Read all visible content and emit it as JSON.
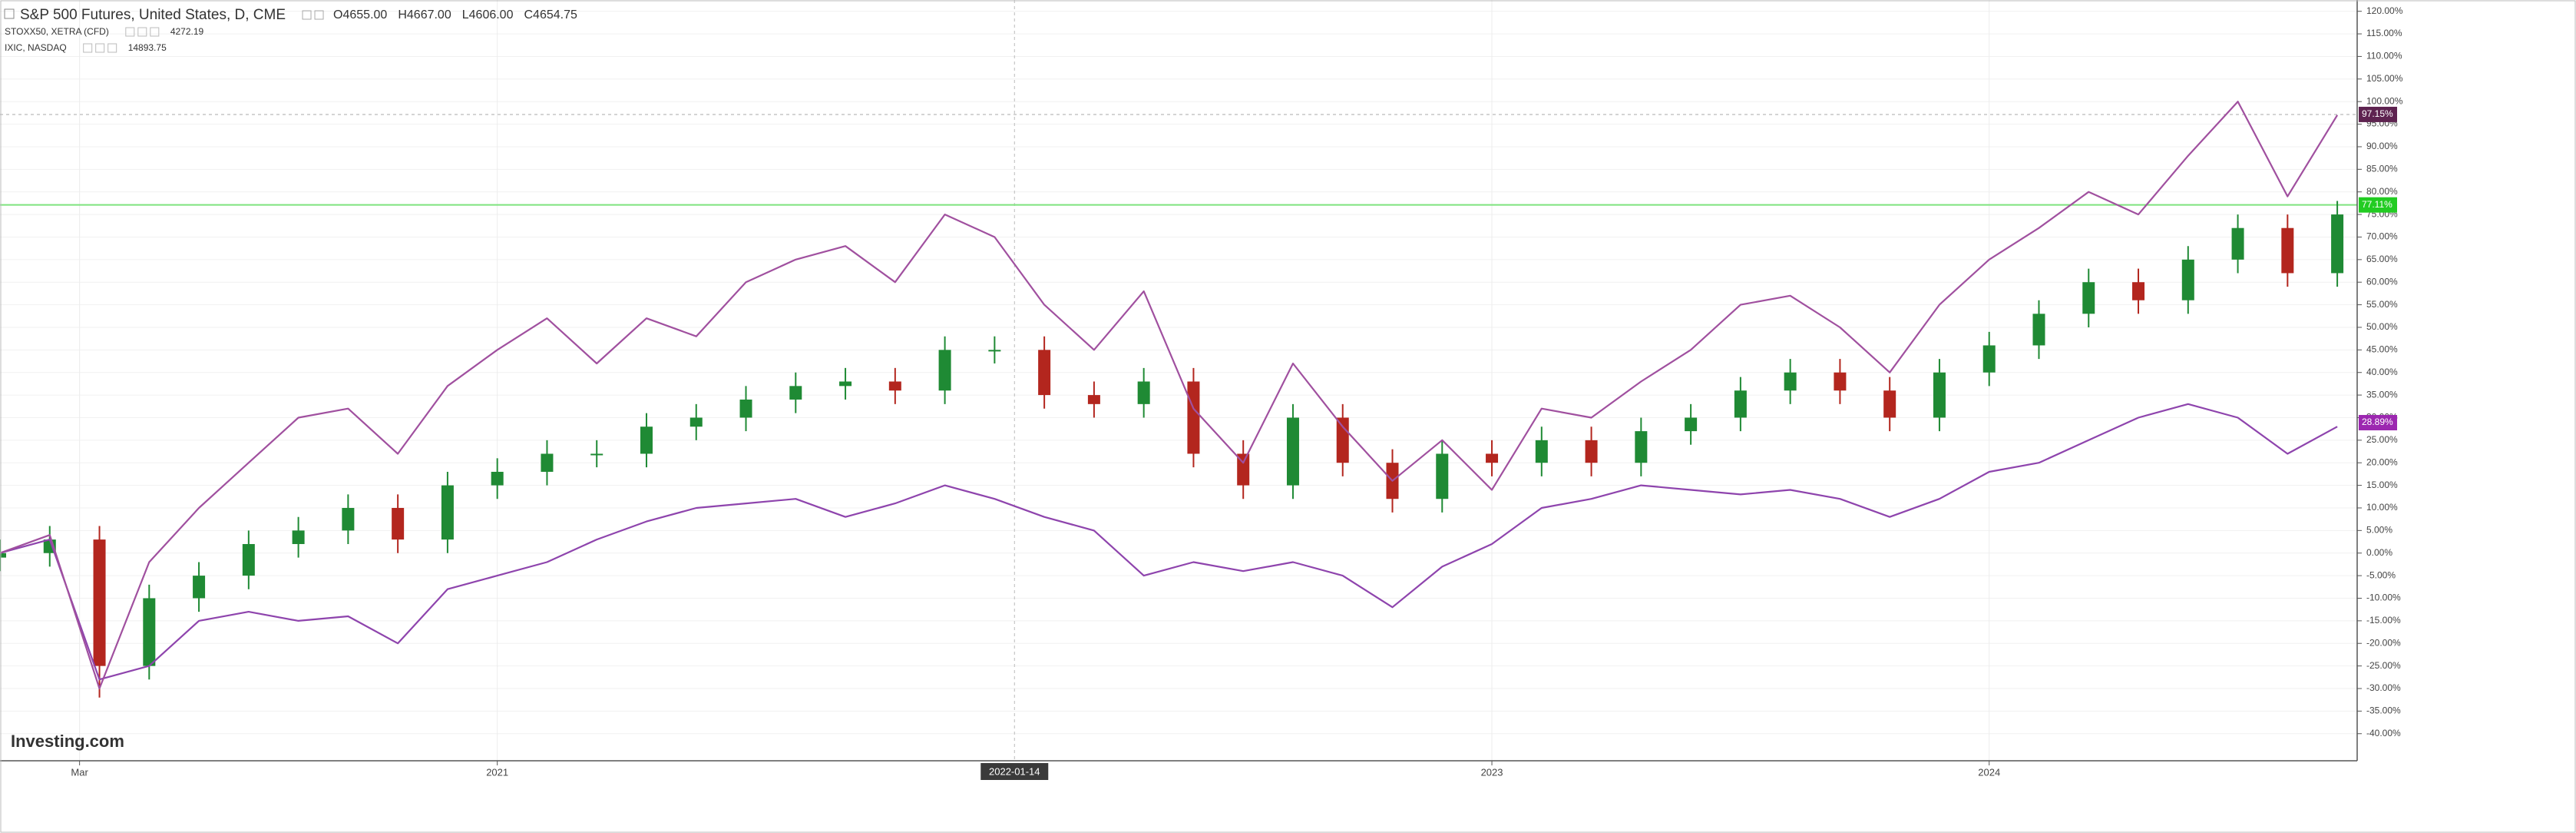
{
  "chart_data": {
    "type": "candlestick",
    "title": "S&P 500 Futures, United States, D, CME",
    "ohlc": [
      {
        "label": "O",
        "value": "4655.00"
      },
      {
        "label": "H",
        "value": "4667.00"
      },
      {
        "label": "L",
        "value": "4606.00"
      },
      {
        "label": "C",
        "value": "4654.75"
      }
    ],
    "watermark": "Investing.com",
    "crosshair": {
      "x": 2022.04,
      "label": "2022-01-14"
    },
    "xlim": [
      2020,
      2024.74
    ],
    "xticks": [
      {
        "value": 2020.16,
        "label": "Mar"
      },
      {
        "value": 2021,
        "label": "2021"
      },
      {
        "value": 2023,
        "label": "2023"
      },
      {
        "value": 2024,
        "label": "2024"
      }
    ],
    "ylim": [
      -46,
      122.5
    ],
    "yticks": [
      {
        "value": 120,
        "label": "120.00%"
      },
      {
        "value": 115,
        "label": "115.00%"
      },
      {
        "value": 110,
        "label": "110.00%"
      },
      {
        "value": 105,
        "label": "105.00%"
      },
      {
        "value": 100,
        "label": "100.00%"
      },
      {
        "value": 95,
        "label": "95.00%"
      },
      {
        "value": 90,
        "label": "90.00%"
      },
      {
        "value": 85,
        "label": "85.00%"
      },
      {
        "value": 80,
        "label": "80.00%"
      },
      {
        "value": 75,
        "label": "75.00%"
      },
      {
        "value": 70,
        "label": "70.00%"
      },
      {
        "value": 65,
        "label": "65.00%"
      },
      {
        "value": 60,
        "label": "60.00%"
      },
      {
        "value": 55,
        "label": "55.00%"
      },
      {
        "value": 50,
        "label": "50.00%"
      },
      {
        "value": 45,
        "label": "45.00%"
      },
      {
        "value": 40,
        "label": "40.00%"
      },
      {
        "value": 35,
        "label": "35.00%"
      },
      {
        "value": 30,
        "label": "30.00%"
      },
      {
        "value": 25,
        "label": "25.00%"
      },
      {
        "value": 20,
        "label": "20.00%"
      },
      {
        "value": 15,
        "label": "15.00%"
      },
      {
        "value": 10,
        "label": "10.00%"
      },
      {
        "value": 5,
        "label": "5.00%"
      },
      {
        "value": 0,
        "label": "0.00%"
      },
      {
        "value": -5,
        "label": "-5.00%"
      },
      {
        "value": -10,
        "label": "-10.00%"
      },
      {
        "value": -15,
        "label": "-15.00%"
      },
      {
        "value": -20,
        "label": "-20.00%"
      },
      {
        "value": -25,
        "label": "-25.00%"
      },
      {
        "value": -30,
        "label": "-30.00%"
      },
      {
        "value": -35,
        "label": "-35.00%"
      },
      {
        "value": -40,
        "label": "-40.00%"
      }
    ],
    "grid": true,
    "x": [
      2020.0,
      2020.1,
      2020.2,
      2020.3,
      2020.4,
      2020.5,
      2020.6,
      2020.7,
      2020.8,
      2020.9,
      2021.0,
      2021.1,
      2021.2,
      2021.3,
      2021.4,
      2021.5,
      2021.6,
      2021.7,
      2021.8,
      2021.9,
      2022.0,
      2022.1,
      2022.2,
      2022.3,
      2022.4,
      2022.5,
      2022.6,
      2022.7,
      2022.8,
      2022.9,
      2023.0,
      2023.1,
      2023.2,
      2023.3,
      2023.4,
      2023.5,
      2023.6,
      2023.7,
      2023.8,
      2023.9,
      2024.0,
      2024.1,
      2024.2,
      2024.3,
      2024.4,
      2024.5,
      2024.6,
      2024.7
    ],
    "series": [
      {
        "name": "S&P 500 Futures, United States, D, CME",
        "type": "candlestick",
        "up_color": "#1f8a34",
        "down_color": "#b3261e",
        "line_color": "#7ee37e",
        "tag_color": "#22cc22",
        "open": [
          -1,
          0,
          3,
          -25,
          -10,
          -5,
          2,
          5,
          10,
          3,
          15,
          18,
          22,
          22,
          28,
          30,
          34,
          37,
          38,
          36,
          45,
          45,
          35,
          33,
          38,
          22,
          15,
          30,
          20,
          12,
          22,
          20,
          25,
          20,
          27,
          30,
          36,
          40,
          36,
          30,
          40,
          46,
          53,
          60,
          56,
          65,
          72,
          62
        ],
        "high": [
          3,
          6,
          6,
          -7,
          -2,
          5,
          8,
          13,
          13,
          18,
          21,
          25,
          25,
          31,
          33,
          37,
          40,
          41,
          41,
          48,
          48,
          48,
          38,
          41,
          41,
          25,
          33,
          33,
          23,
          25,
          25,
          28,
          28,
          30,
          33,
          39,
          43,
          43,
          39,
          43,
          49,
          56,
          63,
          63,
          68,
          75,
          75,
          78
        ],
        "low": [
          -4,
          -3,
          -32,
          -28,
          -13,
          -8,
          -1,
          2,
          0,
          0,
          12,
          15,
          19,
          19,
          25,
          27,
          31,
          34,
          33,
          33,
          42,
          32,
          30,
          30,
          19,
          12,
          12,
          17,
          9,
          9,
          17,
          17,
          17,
          17,
          24,
          27,
          33,
          33,
          27,
          27,
          37,
          43,
          50,
          53,
          53,
          62,
          59,
          59
        ],
        "close": [
          0,
          3,
          -25,
          -10,
          -5,
          2,
          5,
          10,
          3,
          15,
          18,
          22,
          22,
          28,
          30,
          34,
          37,
          38,
          36,
          45,
          45,
          35,
          33,
          38,
          22,
          15,
          30,
          20,
          12,
          22,
          20,
          25,
          20,
          27,
          30,
          36,
          40,
          36,
          30,
          40,
          46,
          53,
          60,
          56,
          65,
          72,
          62,
          75
        ],
        "last_value": 77.11,
        "last_label": "77.11%"
      },
      {
        "name": "STOXX50, XETRA (CFD)",
        "type": "line",
        "color": "#8e44ad",
        "tag_color": "#9c27b0",
        "legend_value": "4272.19",
        "values": [
          0,
          3,
          -28,
          -25,
          -15,
          -13,
          -15,
          -14,
          -20,
          -8,
          -5,
          -2,
          3,
          7,
          10,
          11,
          12,
          8,
          11,
          15,
          12,
          8,
          5,
          -5,
          -2,
          -4,
          -2,
          -5,
          -12,
          -3,
          2,
          10,
          12,
          15,
          14,
          13,
          14,
          12,
          8,
          12,
          18,
          20,
          25,
          30,
          33,
          30,
          22,
          28
        ],
        "last_value": 28.89,
        "last_label": "28.89%"
      },
      {
        "name": "IXIC, NASDAQ",
        "type": "line",
        "color": "#a0509f",
        "tag_color": "#5e2350",
        "legend_value": "14893.75",
        "values": [
          0,
          4,
          -30,
          -2,
          10,
          20,
          30,
          32,
          22,
          37,
          45,
          52,
          42,
          52,
          48,
          60,
          65,
          68,
          60,
          75,
          70,
          55,
          45,
          58,
          32,
          20,
          42,
          28,
          16,
          25,
          14,
          32,
          30,
          38,
          45,
          55,
          57,
          50,
          40,
          55,
          65,
          72,
          80,
          75,
          88,
          100,
          79,
          97
        ],
        "last_value": 97.15,
        "last_label": "97.15%"
      }
    ]
  }
}
